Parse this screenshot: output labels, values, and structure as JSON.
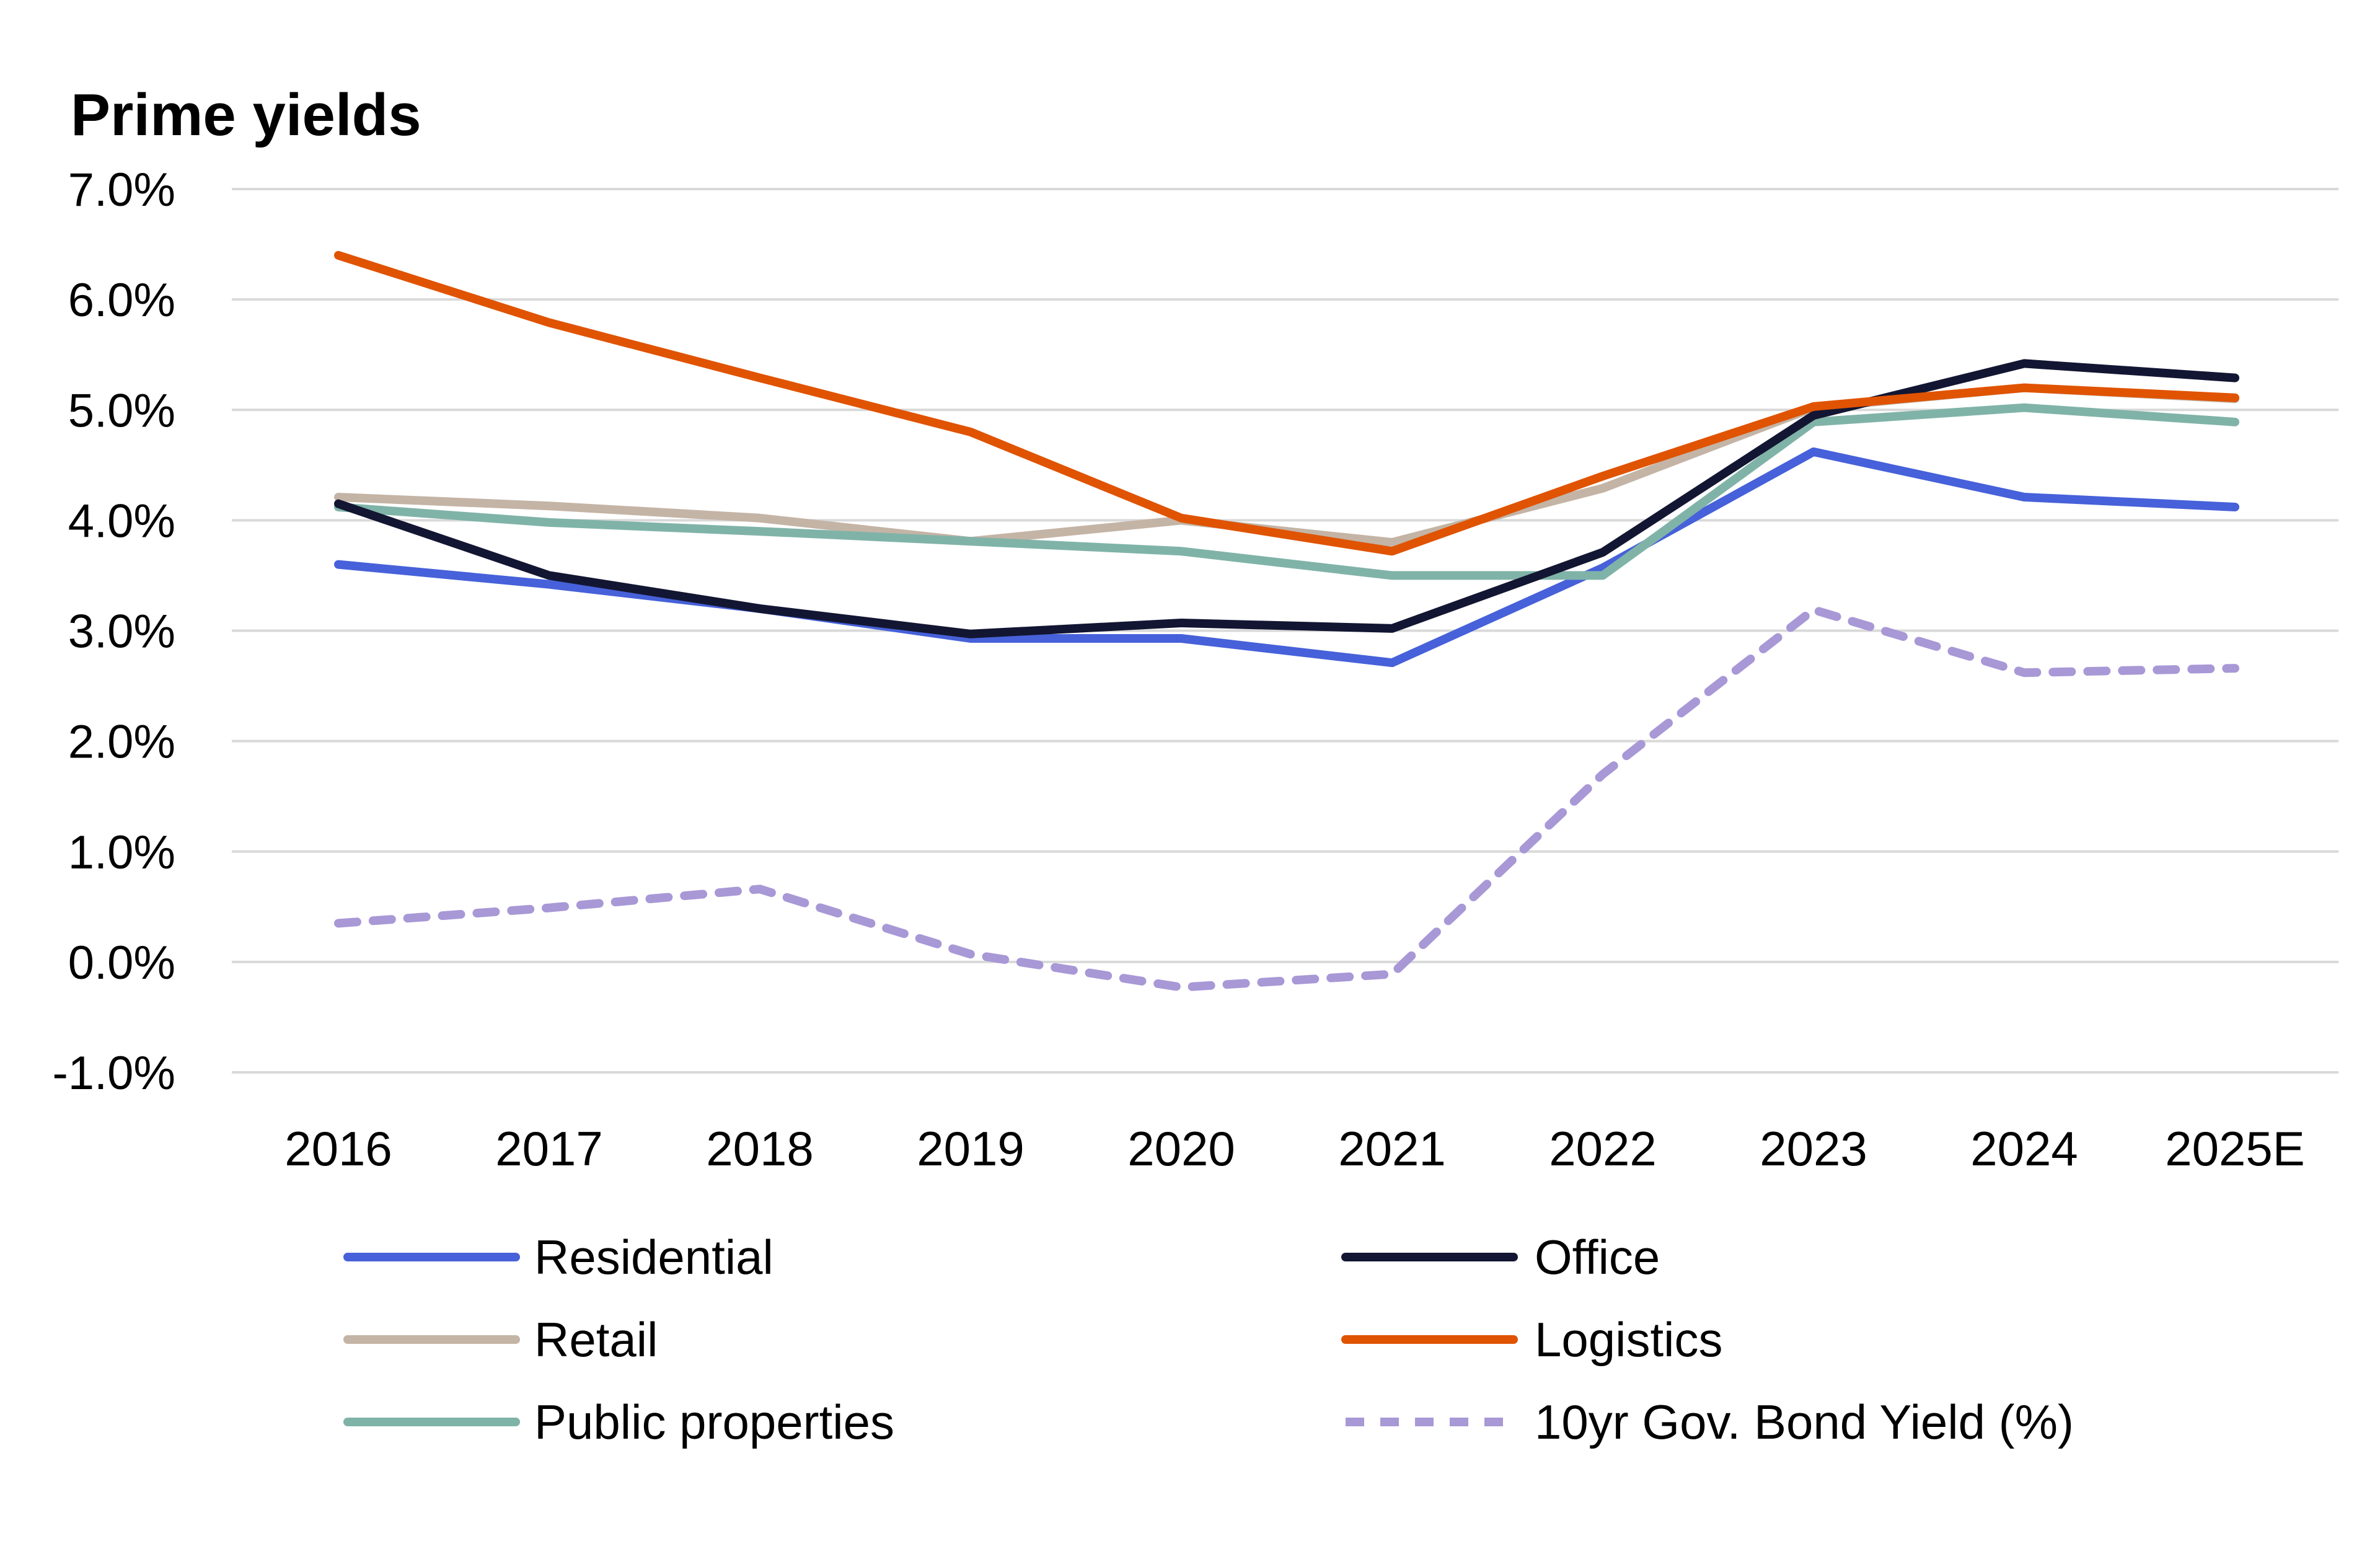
{
  "chart_data": {
    "type": "line",
    "title": "Prime yields",
    "xlabel": "",
    "ylabel": "",
    "categories": [
      "2016",
      "2017",
      "2018",
      "2019",
      "2020",
      "2021",
      "2022",
      "2023",
      "2024",
      "2025E"
    ],
    "ylim": [
      -1.0,
      7.0
    ],
    "y_ticks": [
      7.0,
      6.0,
      5.0,
      4.0,
      3.0,
      2.0,
      1.0,
      0.0,
      -1.0
    ],
    "y_tick_labels": [
      "7.0%",
      "6.0%",
      "5.0%",
      "4.0%",
      "3.0%",
      "2.0%",
      "1.0%",
      "0.0%",
      "-1.0%"
    ],
    "grid": true,
    "legend_position": "bottom",
    "series": [
      {
        "name": "Residential",
        "color": "#4661D9",
        "dashed": false,
        "values": [
          3.6,
          3.42,
          3.2,
          2.93,
          2.93,
          2.71,
          3.57,
          4.62,
          4.21,
          4.12
        ]
      },
      {
        "name": "Office",
        "color": "#131632",
        "dashed": false,
        "values": [
          4.15,
          3.5,
          3.2,
          2.97,
          3.07,
          3.02,
          3.71,
          4.95,
          5.42,
          5.29
        ]
      },
      {
        "name": "Retail",
        "color": "#C4B4A6",
        "dashed": false,
        "values": [
          4.21,
          4.13,
          4.02,
          3.81,
          4.0,
          3.8,
          4.29,
          5.02,
          5.2,
          5.1
        ]
      },
      {
        "name": "Logistics",
        "color": "#E05300",
        "dashed": false,
        "values": [
          6.4,
          5.79,
          5.29,
          4.8,
          4.02,
          3.72,
          4.4,
          5.03,
          5.2,
          5.11
        ]
      },
      {
        "name": "Public properties",
        "color": "#80B3A8",
        "dashed": false,
        "values": [
          4.12,
          3.98,
          3.9,
          3.81,
          3.72,
          3.5,
          3.5,
          4.89,
          5.02,
          4.89
        ]
      },
      {
        "name": "10yr Gov. Bond Yield (%)",
        "color": "#A898D6",
        "dashed": true,
        "values": [
          0.35,
          0.49,
          0.66,
          0.07,
          -0.23,
          -0.11,
          1.7,
          3.19,
          2.62,
          2.66
        ]
      }
    ]
  }
}
